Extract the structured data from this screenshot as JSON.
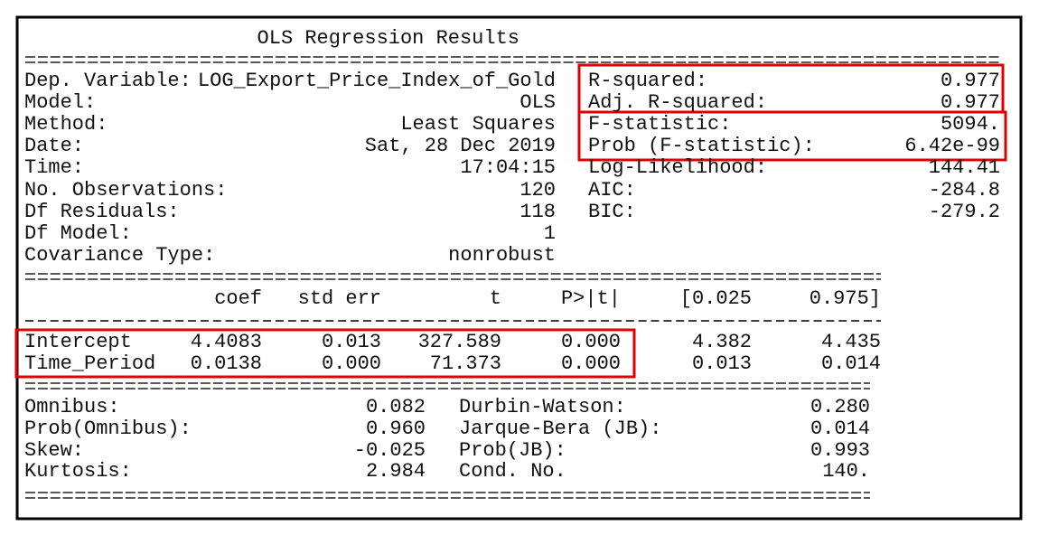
{
  "title": "OLS Regression Results",
  "summary": {
    "left": [
      [
        "Dep. Variable:",
        "LOG_Export_Price_Index_of_Gold"
      ],
      [
        "Model:",
        "OLS"
      ],
      [
        "Method:",
        "Least Squares"
      ],
      [
        "Date:",
        "Sat, 28 Dec 2019"
      ],
      [
        "Time:",
        "17:04:15"
      ],
      [
        "No. Observations:",
        "120"
      ],
      [
        "Df Residuals:",
        "118"
      ],
      [
        "Df Model:",
        "1"
      ],
      [
        "Covariance Type:",
        "nonrobust"
      ]
    ],
    "right": [
      [
        "R-squared:",
        "0.977"
      ],
      [
        "Adj. R-squared:",
        "0.977"
      ],
      [
        "F-statistic:",
        "5094."
      ],
      [
        "Prob (F-statistic):",
        "6.42e-99"
      ],
      [
        "Log-Likelihood:",
        "144.41"
      ],
      [
        "AIC:",
        "-284.8"
      ],
      [
        "BIC:",
        "-279.2"
      ]
    ]
  },
  "coefficients": {
    "headers": [
      "coef",
      "std err",
      "t",
      "P>|t|",
      "[0.025",
      "0.975]"
    ],
    "rows": [
      {
        "name": "Intercept",
        "values": [
          "4.4083",
          "0.013",
          "327.589",
          "0.000",
          "4.382",
          "4.435"
        ]
      },
      {
        "name": "Time_Period",
        "values": [
          "0.0138",
          "0.000",
          "71.373",
          "0.000",
          "0.013",
          "0.014"
        ]
      }
    ]
  },
  "diagnostics": [
    [
      "Omnibus:",
      "0.082",
      "Durbin-Watson:",
      "0.280"
    ],
    [
      "Prob(Omnibus):",
      "0.960",
      "Jarque-Bera (JB):",
      "0.014"
    ],
    [
      "Skew:",
      "-0.025",
      "Prob(JB):",
      "0.993"
    ],
    [
      "Kurtosis:",
      "2.984",
      "Cond. No.",
      "140."
    ]
  ]
}
